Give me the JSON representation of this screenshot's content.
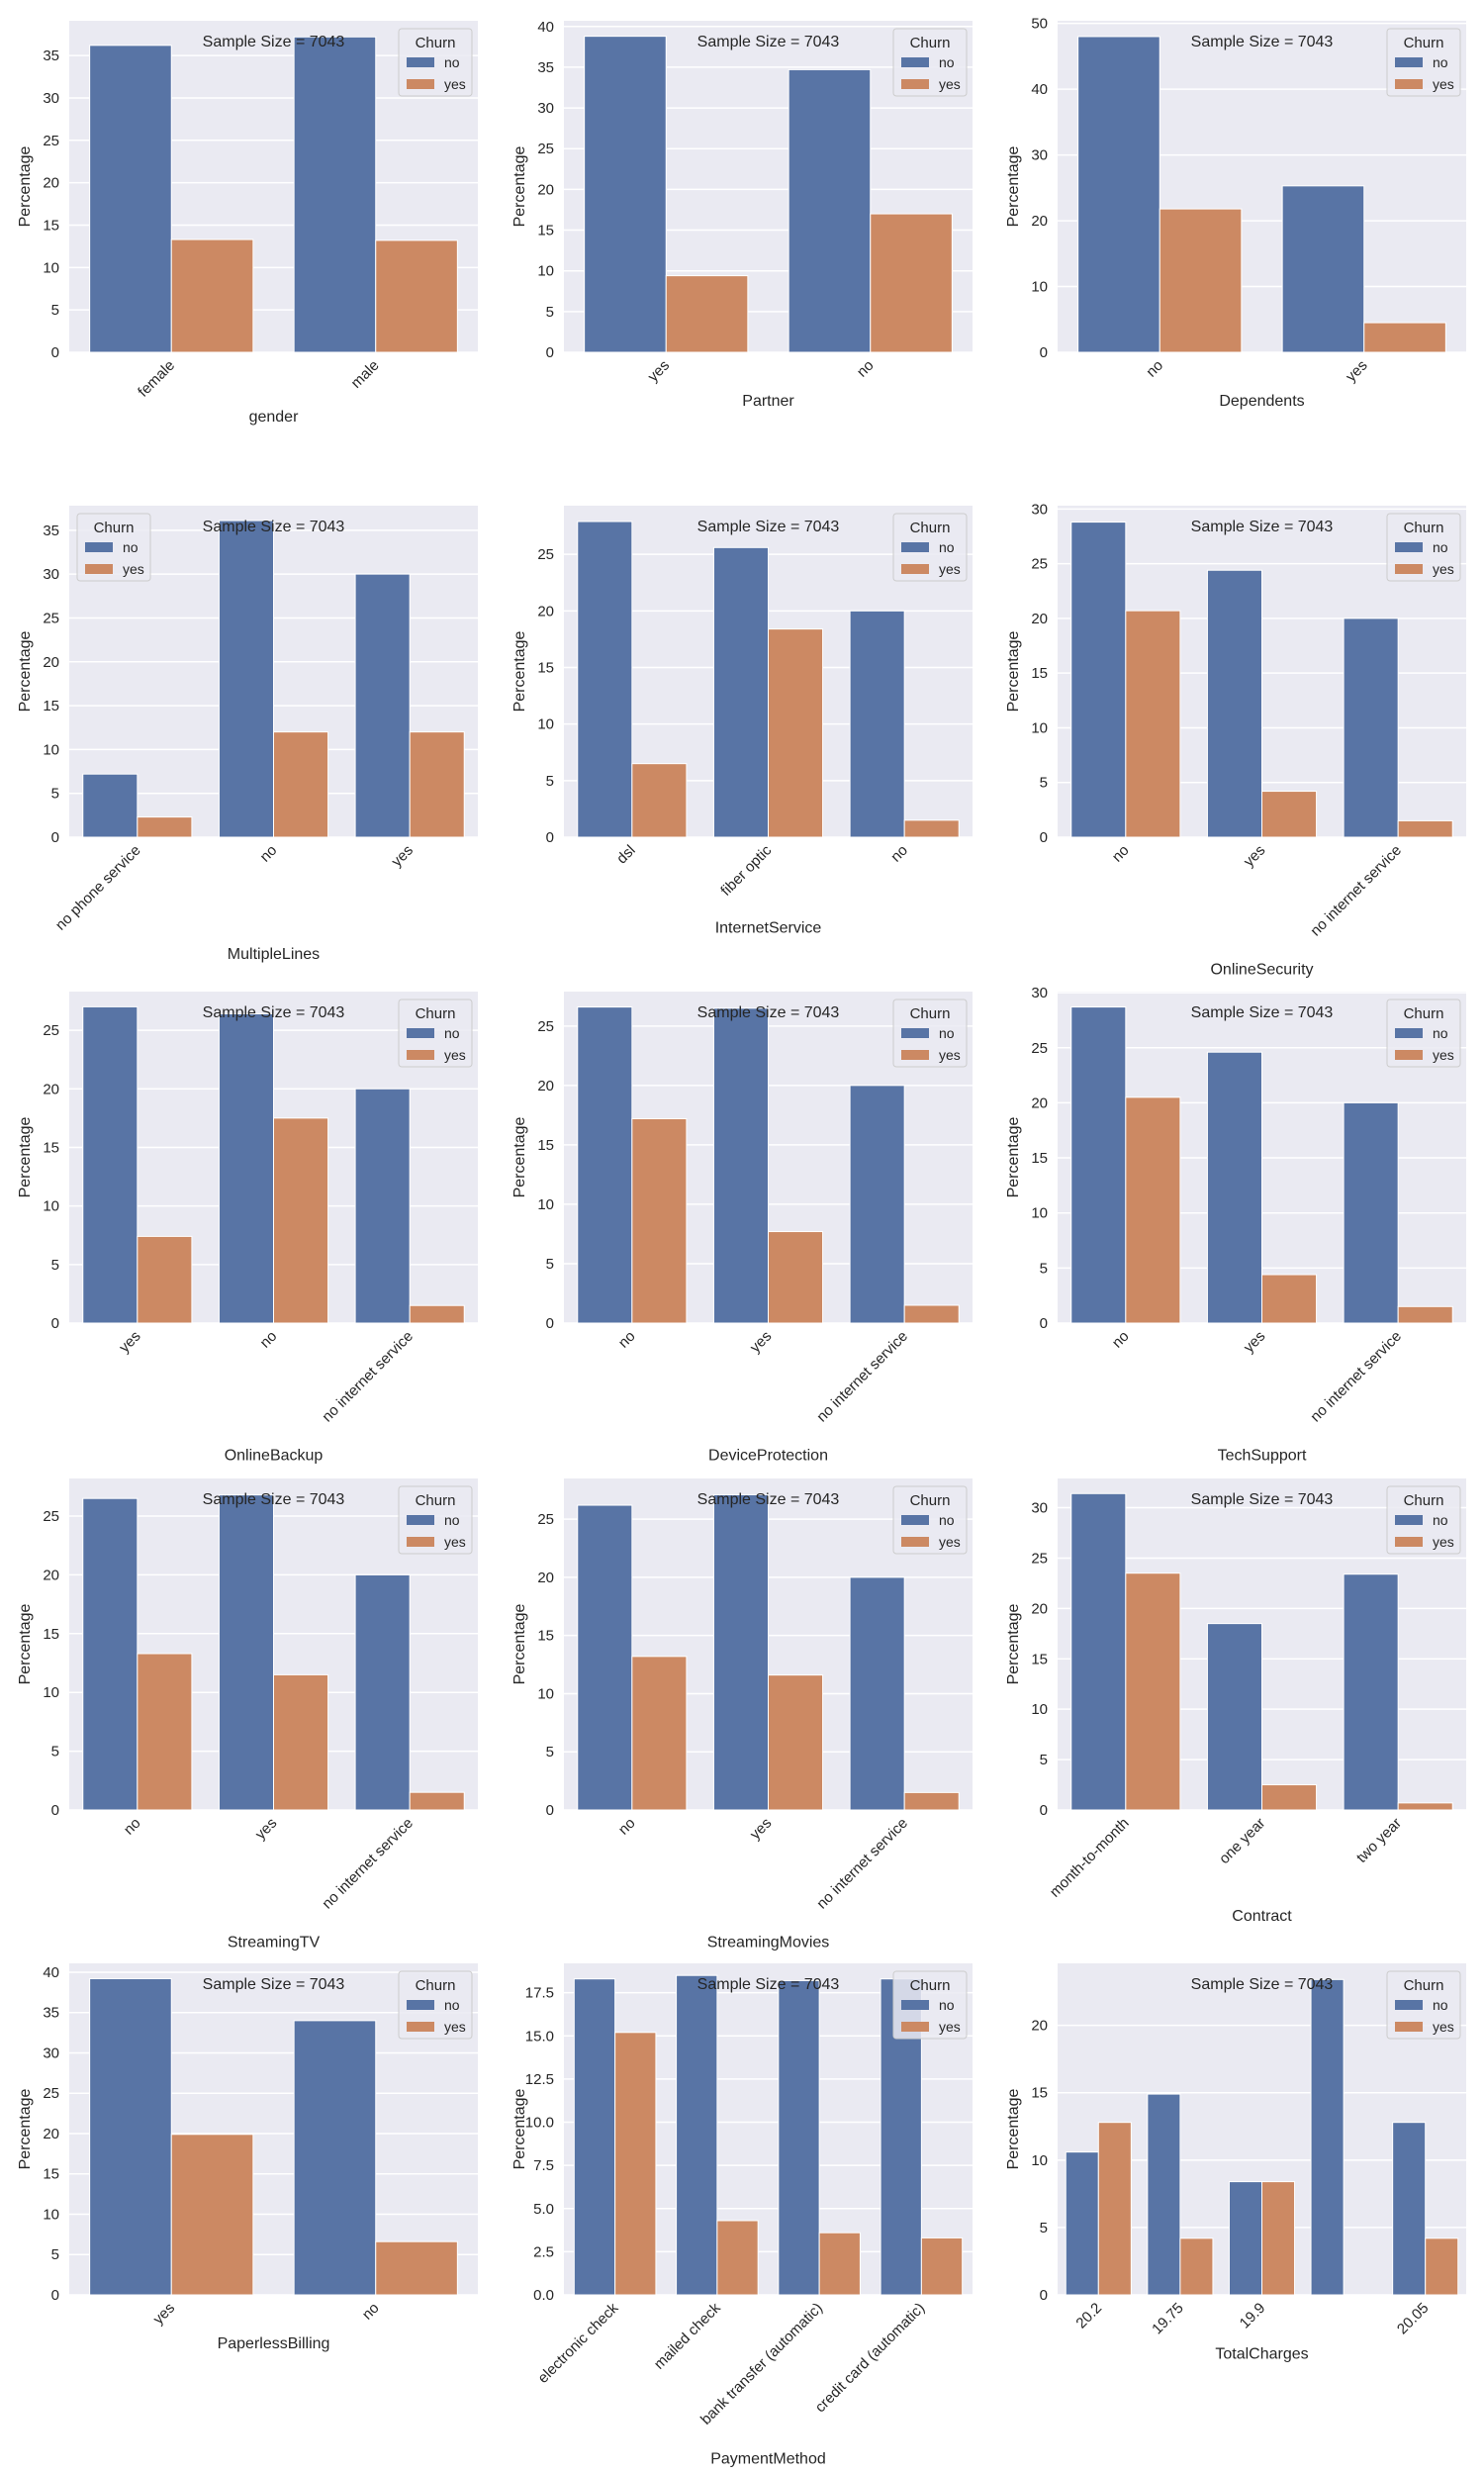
{
  "colors": {
    "no": "#5874a5",
    "yes": "#cc8963",
    "background": "#eaeaf2",
    "grid": "#ffffff"
  },
  "chart_data": [
    {
      "type": "bar",
      "xlabel": "gender",
      "ylabel": "Percentage",
      "annotation": "Sample Size = 7043",
      "legend_title": "Churn",
      "legend_position": "top-right",
      "categories": [
        "female",
        "male"
      ],
      "ylim": [
        0,
        39.1
      ],
      "yticks": [
        0,
        5,
        10,
        15,
        20,
        25,
        30,
        35
      ],
      "series": [
        {
          "name": "no",
          "values": [
            36.2,
            37.2
          ]
        },
        {
          "name": "yes",
          "values": [
            13.3,
            13.2
          ]
        }
      ]
    },
    {
      "type": "bar",
      "xlabel": "Partner",
      "ylabel": "Percentage",
      "annotation": "Sample Size = 7043",
      "legend_title": "Churn",
      "legend_position": "top-right",
      "categories": [
        "yes",
        "no"
      ],
      "ylim": [
        0,
        40.7
      ],
      "yticks": [
        0,
        5,
        10,
        15,
        20,
        25,
        30,
        35,
        40
      ],
      "series": [
        {
          "name": "no",
          "values": [
            38.8,
            34.7
          ]
        },
        {
          "name": "yes",
          "values": [
            9.4,
            17.0
          ]
        }
      ]
    },
    {
      "type": "bar",
      "xlabel": "Dependents",
      "ylabel": "Percentage",
      "annotation": "Sample Size = 7043",
      "legend_title": "Churn",
      "legend_position": "top-right",
      "categories": [
        "no",
        "yes"
      ],
      "ylim": [
        0,
        50.4
      ],
      "yticks": [
        0,
        10,
        20,
        30,
        40,
        50
      ],
      "series": [
        {
          "name": "no",
          "values": [
            48.0,
            25.3
          ]
        },
        {
          "name": "yes",
          "values": [
            21.8,
            4.5
          ]
        }
      ]
    },
    {
      "type": "bar",
      "xlabel": "MultipleLines",
      "ylabel": "Percentage",
      "annotation": "Sample Size = 7043",
      "legend_title": "Churn",
      "legend_position": "top-left",
      "categories": [
        "no phone service",
        "no",
        "yes"
      ],
      "ylim": [
        0,
        37.8
      ],
      "yticks": [
        0,
        5,
        10,
        15,
        20,
        25,
        30,
        35
      ],
      "series": [
        {
          "name": "no",
          "values": [
            7.2,
            36.1,
            30.0
          ]
        },
        {
          "name": "yes",
          "values": [
            2.3,
            12.0,
            12.0
          ]
        }
      ]
    },
    {
      "type": "bar",
      "xlabel": "InternetService",
      "ylabel": "Percentage",
      "annotation": "Sample Size = 7043",
      "legend_title": "Churn",
      "legend_position": "top-right",
      "categories": [
        "dsl",
        "fiber optic",
        "no"
      ],
      "ylim": [
        0,
        29.3
      ],
      "yticks": [
        0,
        5,
        10,
        15,
        20,
        25
      ],
      "series": [
        {
          "name": "no",
          "values": [
            27.9,
            25.6,
            20.0
          ]
        },
        {
          "name": "yes",
          "values": [
            6.5,
            18.4,
            1.5
          ]
        }
      ]
    },
    {
      "type": "bar",
      "xlabel": "OnlineSecurity",
      "ylabel": "Percentage",
      "annotation": "Sample Size = 7043",
      "legend_title": "Churn",
      "legend_position": "top-right",
      "categories": [
        "no",
        "yes",
        "no internet service"
      ],
      "ylim": [
        0,
        30.3
      ],
      "yticks": [
        0,
        5,
        10,
        15,
        20,
        25,
        30
      ],
      "series": [
        {
          "name": "no",
          "values": [
            28.8,
            24.4,
            20.0
          ]
        },
        {
          "name": "yes",
          "values": [
            20.7,
            4.2,
            1.5
          ]
        }
      ]
    },
    {
      "type": "bar",
      "xlabel": "OnlineBackup",
      "ylabel": "Percentage",
      "annotation": "Sample Size = 7043",
      "legend_title": "Churn",
      "legend_position": "top-right",
      "categories": [
        "yes",
        "no",
        "no internet service"
      ],
      "ylim": [
        0,
        28.3
      ],
      "yticks": [
        0,
        5,
        10,
        15,
        20,
        25
      ],
      "series": [
        {
          "name": "no",
          "values": [
            27.0,
            26.4,
            20.0
          ]
        },
        {
          "name": "yes",
          "values": [
            7.4,
            17.5,
            1.5
          ]
        }
      ]
    },
    {
      "type": "bar",
      "xlabel": "DeviceProtection",
      "ylabel": "Percentage",
      "annotation": "Sample Size = 7043",
      "legend_title": "Churn",
      "legend_position": "top-right",
      "categories": [
        "no",
        "yes",
        "no internet service"
      ],
      "ylim": [
        0,
        27.9
      ],
      "yticks": [
        0,
        5,
        10,
        15,
        20,
        25
      ],
      "series": [
        {
          "name": "no",
          "values": [
            26.6,
            26.5,
            20.0
          ]
        },
        {
          "name": "yes",
          "values": [
            17.2,
            7.7,
            1.5
          ]
        }
      ]
    },
    {
      "type": "bar",
      "xlabel": "TechSupport",
      "ylabel": "Percentage",
      "annotation": "Sample Size = 7043",
      "legend_title": "Churn",
      "legend_position": "top-right",
      "categories": [
        "no",
        "yes",
        "no internet service"
      ],
      "ylim": [
        0,
        30.1
      ],
      "yticks": [
        0,
        5,
        10,
        15,
        20,
        25,
        30
      ],
      "series": [
        {
          "name": "no",
          "values": [
            28.7,
            24.6,
            20.0
          ]
        },
        {
          "name": "yes",
          "values": [
            20.5,
            4.4,
            1.5
          ]
        }
      ]
    },
    {
      "type": "bar",
      "xlabel": "StreamingTV",
      "ylabel": "Percentage",
      "annotation": "Sample Size = 7043",
      "legend_title": "Churn",
      "legend_position": "top-right",
      "categories": [
        "no",
        "yes",
        "no internet service"
      ],
      "ylim": [
        0,
        28.2
      ],
      "yticks": [
        0,
        5,
        10,
        15,
        20,
        25
      ],
      "series": [
        {
          "name": "no",
          "values": [
            26.5,
            26.8,
            20.0
          ]
        },
        {
          "name": "yes",
          "values": [
            13.3,
            11.5,
            1.5
          ]
        }
      ]
    },
    {
      "type": "bar",
      "xlabel": "StreamingMovies",
      "ylabel": "Percentage",
      "annotation": "Sample Size = 7043",
      "legend_title": "Churn",
      "legend_position": "top-right",
      "categories": [
        "no",
        "yes",
        "no internet service"
      ],
      "ylim": [
        0,
        28.5
      ],
      "yticks": [
        0,
        5,
        10,
        15,
        20,
        25
      ],
      "series": [
        {
          "name": "no",
          "values": [
            26.2,
            27.1,
            20.0
          ]
        },
        {
          "name": "yes",
          "values": [
            13.2,
            11.6,
            1.5
          ]
        }
      ]
    },
    {
      "type": "bar",
      "xlabel": "Contract",
      "ylabel": "Percentage",
      "annotation": "Sample Size = 7043",
      "legend_title": "Churn",
      "legend_position": "top-right",
      "categories": [
        "month-to-month",
        "one year",
        "two year"
      ],
      "ylim": [
        0,
        32.9
      ],
      "yticks": [
        0,
        5,
        10,
        15,
        20,
        25,
        30
      ],
      "series": [
        {
          "name": "no",
          "values": [
            31.4,
            18.5,
            23.4
          ]
        },
        {
          "name": "yes",
          "values": [
            23.5,
            2.5,
            0.7
          ]
        }
      ]
    },
    {
      "type": "bar",
      "xlabel": "PaperlessBilling",
      "ylabel": "Percentage",
      "annotation": "Sample Size = 7043",
      "legend_title": "Churn",
      "legend_position": "top-right",
      "categories": [
        "yes",
        "no"
      ],
      "ylim": [
        0,
        41.1
      ],
      "yticks": [
        0,
        5,
        10,
        15,
        20,
        25,
        30,
        35,
        40
      ],
      "series": [
        {
          "name": "no",
          "values": [
            39.2,
            34.0
          ]
        },
        {
          "name": "yes",
          "values": [
            19.9,
            6.6
          ]
        }
      ]
    },
    {
      "type": "bar",
      "xlabel": "PaymentMethod",
      "ylabel": "Percentage",
      "annotation": "Sample Size = 7043",
      "legend_title": "Churn",
      "legend_position": "top-right",
      "categories": [
        "electronic check",
        "mailed check",
        "bank transfer (automatic)",
        "credit card (automatic)"
      ],
      "ylim": [
        0,
        19.2
      ],
      "yticks": [
        0.0,
        2.5,
        5.0,
        7.5,
        10.0,
        12.5,
        15.0,
        17.5
      ],
      "ytick_labels": [
        "0.0",
        "2.5",
        "5.0",
        "7.5",
        "10.0",
        "12.5",
        "15.0",
        "17.5"
      ],
      "series": [
        {
          "name": "no",
          "values": [
            18.3,
            18.5,
            18.2,
            18.3
          ]
        },
        {
          "name": "yes",
          "values": [
            15.2,
            4.3,
            3.6,
            3.3
          ]
        }
      ]
    },
    {
      "type": "bar",
      "xlabel": "TotalCharges",
      "ylabel": "Percentage",
      "annotation": "Sample Size = 7043",
      "legend_title": "Churn",
      "legend_position": "top-right",
      "categories": [
        "20.2",
        "19.75",
        "19.9",
        "",
        "20.05"
      ],
      "ylim": [
        0,
        24.6
      ],
      "yticks": [
        0,
        5,
        10,
        15,
        20
      ],
      "series": [
        {
          "name": "no",
          "values": [
            10.6,
            14.9,
            8.4,
            23.4,
            12.8
          ]
        },
        {
          "name": "yes",
          "values": [
            12.8,
            4.2,
            8.4,
            0,
            4.2
          ]
        }
      ]
    }
  ]
}
